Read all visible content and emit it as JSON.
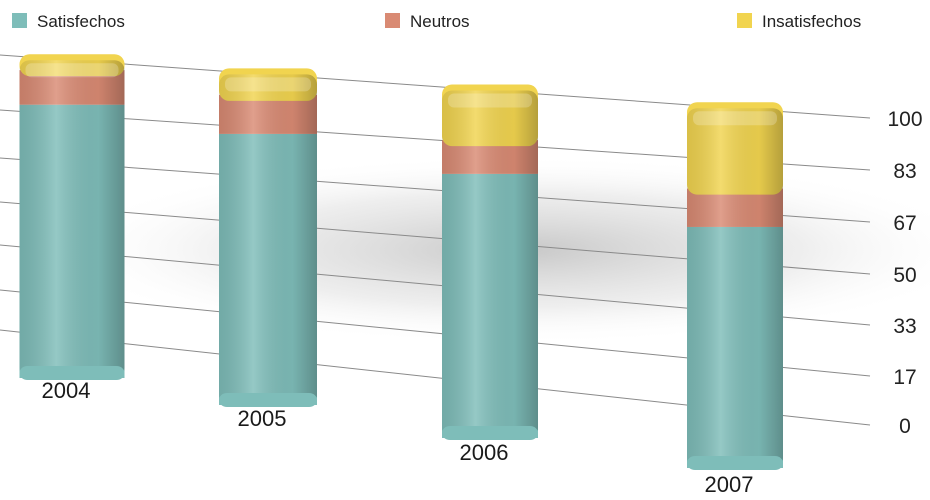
{
  "chart_data": {
    "type": "bar",
    "stacked": true,
    "categories": [
      "2004",
      "2005",
      "2006",
      "2007"
    ],
    "series": [
      {
        "name": "Satisfechos",
        "color": "#7ebdb9",
        "values": [
          86,
          82,
          76,
          67
        ]
      },
      {
        "name": "Neutros",
        "color": "#d98a73",
        "values": [
          9,
          10,
          8,
          9
        ]
      },
      {
        "name": "Insatisfechos",
        "color": "#f1d44f",
        "values": [
          5,
          8,
          16,
          24
        ]
      }
    ],
    "y_ticks": [
      "100",
      "83",
      "67",
      "50",
      "33",
      "17",
      "0"
    ],
    "ylim": [
      0,
      100
    ],
    "legend_position": "top",
    "grid": true
  }
}
